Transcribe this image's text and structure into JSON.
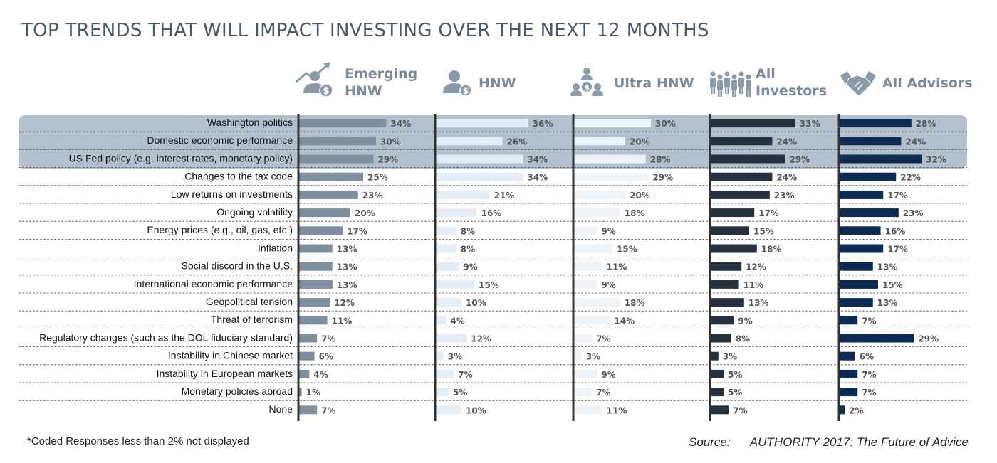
{
  "title": "TOP TRENDS THAT WILL IMPACT INVESTING OVER THE NEXT 12 MONTHS",
  "footnote": "*Coded Responses less than 2% not displayed",
  "source_label": "Source:",
  "source_text": "AUTHORITY 2017: The Future of Advice",
  "colors": {
    "highlight_band": "#b4c0ce",
    "divider": "#333333",
    "value_label": "#555555",
    "category_text": "#111111",
    "header_text": "#7d8b99",
    "icon": "#8c9aa8"
  },
  "chart_data": {
    "type": "bar",
    "orientation": "horizontal",
    "title": "TOP TRENDS THAT WILL IMPACT INVESTING OVER THE NEXT 12 MONTHS",
    "value_suffix": "%",
    "highlighted_categories": 3,
    "categories": [
      "Washington politics",
      "Domestic economic performance",
      "US Fed policy (e.g. interest rates, monetary policy)",
      "Changes to the tax code",
      "Low returns on investments",
      "Ongoing volatility",
      "Energy prices (e.g., oil, gas, etc.)",
      "Inflation",
      "Social discord in the U.S.",
      "International economic performance",
      "Geopolitical tension",
      "Threat of terrorism",
      "Regulatory changes (such as the DOL fiduciary standard)",
      "Instability in Chinese market",
      "Instability in European markets",
      "Monetary policies abroad",
      "None"
    ],
    "series": [
      {
        "name": "Emerging HNW",
        "header_lines": [
          "Emerging",
          "HNW"
        ],
        "icon": "person-growth-dollar-icon",
        "color": "#7f8f9f",
        "values": [
          34,
          30,
          29,
          25,
          23,
          20,
          17,
          13,
          13,
          13,
          12,
          11,
          7,
          6,
          4,
          1,
          7
        ]
      },
      {
        "name": "HNW",
        "header_lines": [
          "HNW"
        ],
        "icon": "person-dollar-icon",
        "color": "#e4ecf5",
        "values": [
          36,
          26,
          34,
          34,
          21,
          16,
          8,
          8,
          9,
          15,
          10,
          4,
          12,
          3,
          7,
          5,
          10
        ]
      },
      {
        "name": "Ultra HNW",
        "header_lines": [
          "Ultra HNW"
        ],
        "icon": "people-dollar-icon",
        "color": "#eef3f8",
        "values": [
          30,
          20,
          28,
          29,
          20,
          18,
          9,
          15,
          11,
          9,
          18,
          14,
          7,
          3,
          9,
          7,
          11
        ]
      },
      {
        "name": "All Investors",
        "header_lines": [
          "All",
          "Investors"
        ],
        "icon": "crowd-icon",
        "color": "#26313d",
        "values": [
          33,
          24,
          29,
          24,
          23,
          17,
          15,
          18,
          12,
          11,
          13,
          9,
          8,
          3,
          5,
          5,
          7
        ]
      },
      {
        "name": "All Advisors",
        "header_lines": [
          "All Advisors"
        ],
        "icon": "handshake-icon",
        "color": "#0c2a52",
        "values": [
          28,
          24,
          32,
          22,
          17,
          23,
          16,
          17,
          13,
          15,
          13,
          7,
          29,
          6,
          7,
          7,
          2
        ]
      }
    ]
  }
}
